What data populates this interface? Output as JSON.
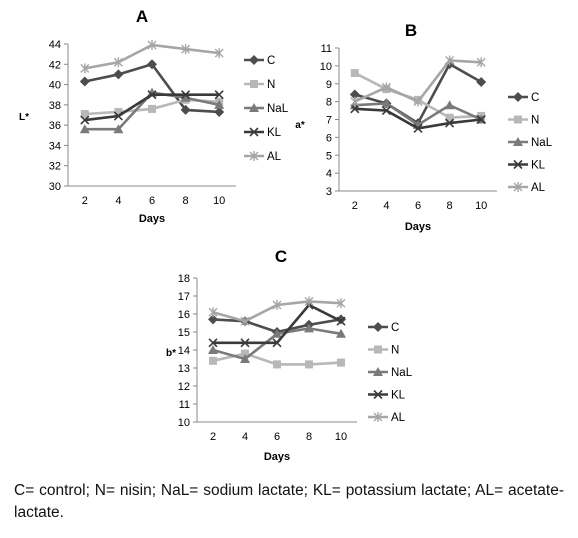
{
  "caption": "C= control; N= nisin; NaL= sodium lactate; KL= potassium lactate; AL= acetate-lactate.",
  "chart_data": [
    {
      "type": "line",
      "title": "A",
      "xlabel": "Days",
      "ylabel": "L*",
      "x": [
        2,
        4,
        6,
        8,
        10
      ],
      "ylim": [
        30,
        44
      ],
      "yticks": [
        30,
        32,
        34,
        36,
        38,
        40,
        42,
        44
      ],
      "legend_position": "right",
      "series": [
        {
          "name": "C",
          "values": [
            40.3,
            41.0,
            42.0,
            37.5,
            37.3
          ],
          "color": "#4d4d4d",
          "marker": "diamond"
        },
        {
          "name": "N",
          "values": [
            37.1,
            37.3,
            37.6,
            38.5,
            38.3
          ],
          "color": "#b8b8b8",
          "marker": "square"
        },
        {
          "name": "NaL",
          "values": [
            35.6,
            35.6,
            39.2,
            38.7,
            38.0
          ],
          "color": "#7a7a7a",
          "marker": "triangle"
        },
        {
          "name": "KL",
          "values": [
            36.5,
            36.9,
            39.0,
            39.0,
            39.0
          ],
          "color": "#3a3a3a",
          "marker": "x"
        },
        {
          "name": "AL",
          "values": [
            41.6,
            42.2,
            43.9,
            43.5,
            43.1
          ],
          "color": "#a6a6a6",
          "marker": "star"
        }
      ]
    },
    {
      "type": "line",
      "title": "B",
      "xlabel": "Days",
      "ylabel": "a*",
      "x": [
        2,
        4,
        6,
        8,
        10
      ],
      "ylim": [
        3,
        11
      ],
      "yticks": [
        3,
        4,
        5,
        6,
        7,
        8,
        9,
        10,
        11
      ],
      "legend_position": "right",
      "series": [
        {
          "name": "C",
          "values": [
            8.4,
            7.9,
            6.8,
            10.1,
            9.1
          ],
          "color": "#4d4d4d",
          "marker": "diamond"
        },
        {
          "name": "N",
          "values": [
            9.6,
            8.7,
            8.1,
            7.1,
            7.2
          ],
          "color": "#b8b8b8",
          "marker": "square"
        },
        {
          "name": "NaL",
          "values": [
            7.8,
            7.9,
            6.7,
            7.8,
            7.0
          ],
          "color": "#7a7a7a",
          "marker": "triangle"
        },
        {
          "name": "KL",
          "values": [
            7.6,
            7.5,
            6.5,
            6.8,
            7.0
          ],
          "color": "#3a3a3a",
          "marker": "x"
        },
        {
          "name": "AL",
          "values": [
            8.0,
            8.8,
            8.0,
            10.3,
            10.2
          ],
          "color": "#a6a6a6",
          "marker": "star"
        }
      ]
    },
    {
      "type": "line",
      "title": "C",
      "xlabel": "Days",
      "ylabel": "b*",
      "x": [
        2,
        4,
        6,
        8,
        10
      ],
      "ylim": [
        10,
        18
      ],
      "yticks": [
        10,
        11,
        12,
        13,
        14,
        15,
        16,
        17,
        18
      ],
      "legend_position": "right",
      "series": [
        {
          "name": "C",
          "values": [
            15.7,
            15.6,
            15.0,
            15.4,
            15.7
          ],
          "color": "#4d4d4d",
          "marker": "diamond"
        },
        {
          "name": "N",
          "values": [
            13.4,
            13.8,
            13.2,
            13.2,
            13.3
          ],
          "color": "#b8b8b8",
          "marker": "square"
        },
        {
          "name": "NaL",
          "values": [
            14.0,
            13.5,
            14.9,
            15.2,
            14.9
          ],
          "color": "#7a7a7a",
          "marker": "triangle"
        },
        {
          "name": "KL",
          "values": [
            14.4,
            14.4,
            14.4,
            16.5,
            15.6
          ],
          "color": "#3a3a3a",
          "marker": "x"
        },
        {
          "name": "AL",
          "values": [
            16.1,
            15.6,
            16.5,
            16.7,
            16.6
          ],
          "color": "#a6a6a6",
          "marker": "star"
        }
      ]
    }
  ]
}
